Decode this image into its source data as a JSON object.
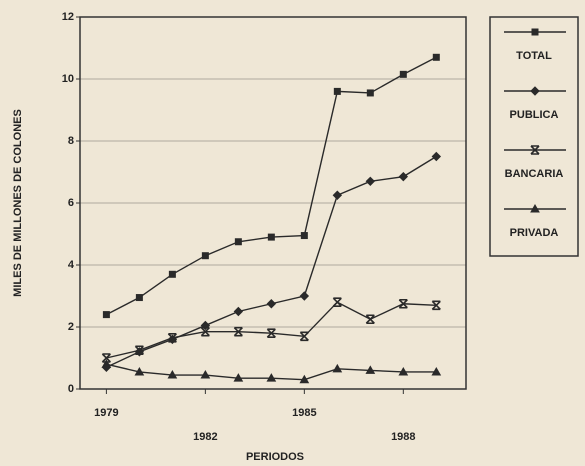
{
  "chart_data": {
    "type": "line",
    "x_label": "PERIODOS",
    "y_label": "MILES DE MILLONES DE COLONES",
    "x": [
      1979,
      1980,
      1981,
      1982,
      1983,
      1984,
      1985,
      1986,
      1987,
      1988,
      1989
    ],
    "series": [
      {
        "name": "TOTAL",
        "color": "#2a2a2a",
        "marker": "square",
        "values": [
          2.4,
          2.95,
          3.7,
          4.3,
          4.75,
          4.9,
          4.95,
          9.6,
          9.55,
          10.15,
          10.7
        ]
      },
      {
        "name": "PUBLICA",
        "color": "#2a2a2a",
        "marker": "diamond",
        "values": [
          0.7,
          1.2,
          1.6,
          2.05,
          2.5,
          2.75,
          3.0,
          6.25,
          6.7,
          6.85,
          7.5
        ]
      },
      {
        "name": "BANCARIA",
        "color": "#2a2a2a",
        "marker": "cross",
        "values": [
          1.0,
          1.25,
          1.65,
          1.85,
          1.85,
          1.8,
          1.7,
          2.8,
          2.25,
          2.75,
          2.7
        ]
      },
      {
        "name": "PRIVADA",
        "color": "#2a2a2a",
        "marker": "triangle",
        "values": [
          0.8,
          0.55,
          0.45,
          0.45,
          0.35,
          0.35,
          0.3,
          0.65,
          0.6,
          0.55,
          0.55
        ]
      }
    ],
    "xlim": [
      1978.2,
      1989.9
    ],
    "xticks": [
      1979,
      1982,
      1985,
      1988
    ],
    "ylim": [
      0,
      12
    ],
    "yticks": [
      0,
      2,
      4,
      6,
      8,
      10,
      12
    ],
    "grid": true,
    "legend": "right"
  }
}
